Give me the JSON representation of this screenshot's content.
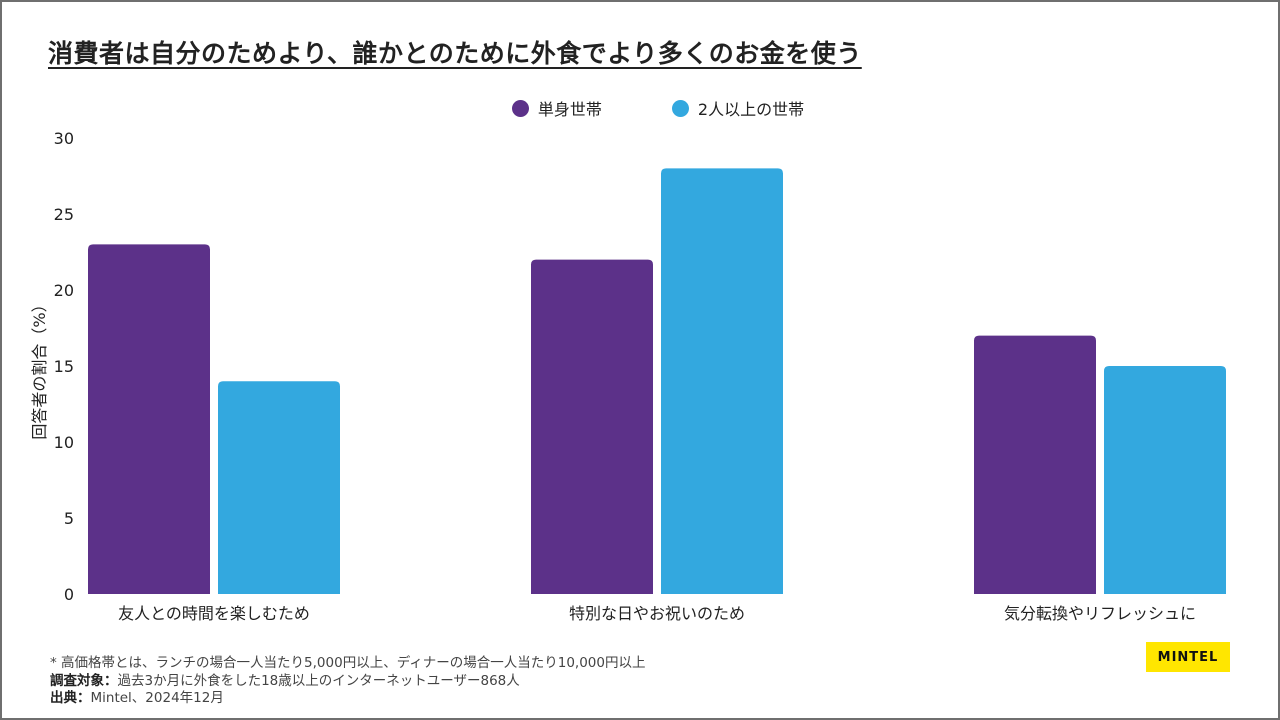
{
  "title": "消費者は自分のためより、誰かとのために外食でより多くのお金を使う",
  "chart_data": {
    "type": "bar",
    "categories": [
      "友人との時間を楽しむため",
      "特別な日やお祝いのため",
      "気分転換やリフレッシュに"
    ],
    "series": [
      {
        "name": "単身世帯",
        "values": [
          23,
          22,
          17
        ],
        "color": "#5c3189"
      },
      {
        "name": "2人以上の世帯",
        "values": [
          14,
          28,
          15
        ],
        "color": "#33a8df"
      }
    ],
    "ylabel": "回答者の割合（%）",
    "xlabel": "",
    "ylim": [
      0,
      30
    ],
    "yticks": [
      "0",
      "5",
      "10",
      "15",
      "20",
      "25",
      "30"
    ],
    "grid": false,
    "legend_position": "top-center"
  },
  "footnotes": {
    "note": "* 高価格帯とは、ランチの場合一人当たり5,000円以上、ディナーの場合一人当たり10,000円以上",
    "target_label": "調査対象：",
    "target_text": "過去3か月に外食をした18歳以上のインターネットユーザー868人",
    "source_label": "出典：",
    "source_text": "Mintel、2024年12月"
  },
  "logo": {
    "text": "MINTEL",
    "color": "#ffe600"
  }
}
